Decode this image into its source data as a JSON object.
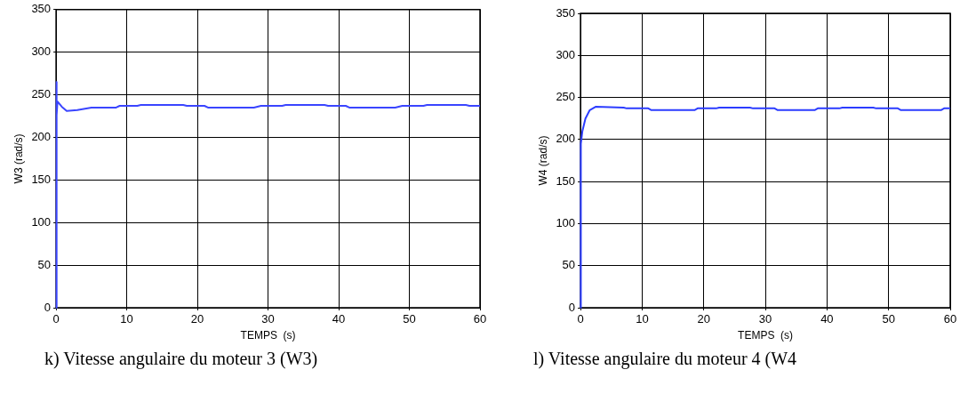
{
  "chart_data": [
    {
      "type": "line",
      "xlabel": "TEMPS  (s)",
      "ylabel": "W3 (rad/s)",
      "annotations": [
        "k) Vitesse angulaire du moteur 3 (W3)"
      ],
      "xlim": [
        0,
        60
      ],
      "ylim": [
        0,
        350
      ],
      "xticks": [
        0,
        10,
        20,
        30,
        40,
        50,
        60
      ],
      "yticks": [
        0,
        50,
        100,
        150,
        200,
        250,
        300,
        350
      ],
      "grid": true,
      "legend": false,
      "series": [
        {
          "color": "#3a45ff",
          "x": [
            0,
            0.05,
            0.1,
            0.2,
            0.8,
            1.5,
            3,
            5,
            8.5,
            9,
            11.5,
            12,
            18,
            18.5,
            21,
            21.5,
            28,
            29,
            32,
            32.5,
            38,
            38.5,
            41,
            41.5,
            48,
            49,
            52,
            52.5,
            58,
            58.5,
            60
          ],
          "values": [
            0,
            265,
            226,
            242,
            236,
            231,
            232,
            235,
            235,
            237,
            237,
            238,
            238,
            237,
            237,
            235,
            235,
            237,
            237,
            238,
            238,
            237,
            237,
            235,
            235,
            237,
            237,
            238,
            238,
            237,
            237
          ]
        }
      ]
    },
    {
      "type": "line",
      "xlabel": "TEMPS  (s)",
      "ylabel": "W4 (rad/s)",
      "annotations": [
        "l) Vitesse angulaire du moteur 4 (W4"
      ],
      "xlim": [
        0,
        60
      ],
      "ylim": [
        0,
        350
      ],
      "xticks": [
        0,
        10,
        20,
        30,
        40,
        50,
        60
      ],
      "yticks": [
        0,
        50,
        100,
        150,
        200,
        250,
        300,
        350
      ],
      "grid": true,
      "legend": false,
      "series": [
        {
          "color": "#2b3cff",
          "x": [
            0,
            0.05,
            0.3,
            0.8,
            1.5,
            2.5,
            7,
            7.5,
            11,
            11.5,
            18.5,
            19,
            22,
            22.5,
            27.5,
            28,
            31.5,
            32,
            38,
            38.5,
            42,
            42.5,
            47.5,
            48,
            51.5,
            52,
            58.5,
            59,
            60
          ],
          "values": [
            0,
            195,
            210,
            225,
            235,
            239,
            238,
            237,
            237,
            235,
            235,
            237,
            237,
            238,
            238,
            237,
            237,
            235,
            235,
            237,
            237,
            238,
            238,
            237,
            237,
            235,
            235,
            237,
            237
          ]
        }
      ]
    }
  ]
}
